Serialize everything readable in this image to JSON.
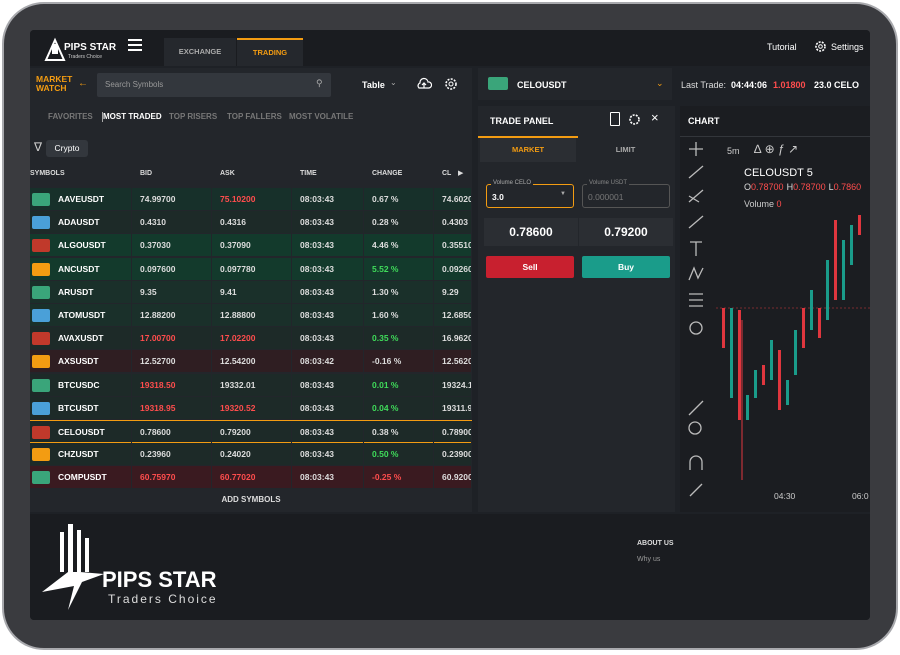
{
  "header": {
    "logo": "PIPS STAR",
    "logo_sub": "Traders Choice",
    "tabs": [
      "EXCHANGE",
      "TRADING"
    ],
    "tutorial": "Tutorial",
    "settings": "Settings"
  },
  "market_watch": {
    "title": "MARKET WATCH",
    "search_placeholder": "Search Symbols",
    "view": "Table",
    "filters": [
      "FAVORITES",
      "MOST TRADED",
      "TOP RISERS",
      "TOP FALLERS",
      "MOST VOLATILE"
    ],
    "category": "Crypto",
    "columns": [
      "SYMBOLS",
      "BID",
      "ASK",
      "TIME",
      "CHANGE",
      "CL"
    ],
    "rows": [
      {
        "cells": [
          "AAVEUSDT",
          "74.99700",
          "75.10200",
          "08:03:43",
          "0.67 %",
          "74.6020"
        ],
        "colors": [
          "#fff",
          "#ddd",
          "#ff4d4d",
          "#ddd",
          "#ddd",
          "#ddd"
        ],
        "bg": "#17302a"
      },
      {
        "cells": [
          "ADAUSDT",
          "0.4310",
          "0.4316",
          "08:03:43",
          "0.28 %",
          "0.4303"
        ],
        "colors": [
          "#fff",
          "#ddd",
          "#ddd",
          "#ddd",
          "#ddd",
          "#ddd"
        ],
        "bg": "#1d2a28"
      },
      {
        "cells": [
          "ALGOUSDT",
          "0.37030",
          "0.37090",
          "08:03:43",
          "4.46 %",
          "0.35510"
        ],
        "colors": [
          "#fff",
          "#ddd",
          "#ddd",
          "#ddd",
          "#ddd",
          "#ddd"
        ],
        "bg": "#133a2c"
      },
      {
        "cells": [
          "ANCUSDT",
          "0.097600",
          "0.097780",
          "08:03:43",
          "5.52 %",
          "0.09260"
        ],
        "colors": [
          "#fff",
          "#ddd",
          "#ddd",
          "#ddd",
          "#3fdc5a",
          "#ddd"
        ],
        "bg": "#133a2c"
      },
      {
        "cells": [
          "ARUSDT",
          "9.35",
          "9.41",
          "08:03:43",
          "1.30 %",
          "9.29"
        ],
        "colors": [
          "#fff",
          "#ddd",
          "#ddd",
          "#ddd",
          "#ddd",
          "#ddd"
        ],
        "bg": "#1a302a"
      },
      {
        "cells": [
          "ATOMUSDT",
          "12.88200",
          "12.88800",
          "08:03:43",
          "1.60 %",
          "12.6850"
        ],
        "colors": [
          "#fff",
          "#ddd",
          "#ddd",
          "#ddd",
          "#ddd",
          "#ddd"
        ],
        "bg": "#1a302a"
      },
      {
        "cells": [
          "AVAXUSDT",
          "17.00700",
          "17.02200",
          "08:03:43",
          "0.35 %",
          "16.9620"
        ],
        "colors": [
          "#fff",
          "#ff4d4d",
          "#ff4d4d",
          "#ddd",
          "#3fdc5a",
          "#ddd"
        ],
        "bg": "#1d2a28"
      },
      {
        "cells": [
          "AXSUSDT",
          "12.52700",
          "12.54200",
          "08:03:42",
          "-0.16 %",
          "12.5620"
        ],
        "colors": [
          "#fff",
          "#ddd",
          "#ddd",
          "#ddd",
          "#ddd",
          "#ddd"
        ],
        "bg": "#2f1e22"
      },
      {
        "cells": [
          "BTCUSDC",
          "19318.50",
          "19332.01",
          "08:03:43",
          "0.01 %",
          "19324.1"
        ],
        "colors": [
          "#fff",
          "#ff4d4d",
          "#ddd",
          "#ddd",
          "#3fdc5a",
          "#ddd"
        ],
        "bg": "#1d2a28"
      },
      {
        "cells": [
          "BTCUSDT",
          "19318.95",
          "19320.52",
          "08:03:43",
          "0.04 %",
          "19311.9"
        ],
        "colors": [
          "#fff",
          "#ff4d4d",
          "#ff4d4d",
          "#ddd",
          "#3fdc5a",
          "#ddd"
        ],
        "bg": "#1d2a28"
      },
      {
        "cells": [
          "CELOUSDT",
          "0.78600",
          "0.79200",
          "08:03:43",
          "0.38 %",
          "0.78900"
        ],
        "colors": [
          "#fff",
          "#ddd",
          "#ddd",
          "#ddd",
          "#ddd",
          "#ddd"
        ],
        "bg": "#1d2a28",
        "selected": true
      },
      {
        "cells": [
          "CHZUSDT",
          "0.23960",
          "0.24020",
          "08:03:43",
          "0.50 %",
          "0.23900"
        ],
        "colors": [
          "#fff",
          "#ddd",
          "#ddd",
          "#ddd",
          "#3fdc5a",
          "#ddd"
        ],
        "bg": "#1d2a28"
      },
      {
        "cells": [
          "COMPUSDT",
          "60.75970",
          "60.77020",
          "08:03:43",
          "-0.25 %",
          "60.9200"
        ],
        "colors": [
          "#fff",
          "#ff4d4d",
          "#ff4d4d",
          "#ddd",
          "#ff4d4d",
          "#ddd"
        ],
        "bg": "#3a1a20"
      }
    ],
    "add_symbols": "ADD SYMBOLS"
  },
  "symbol_bar": {
    "symbol": "CELOUSDT",
    "last_trade_label": "Last Trade:",
    "last_trade_time": "04:44:06",
    "last_trade_price": "1.01800",
    "last_trade_volume": "23.0 CELO"
  },
  "trade_panel": {
    "title": "TRADE PANEL",
    "tabs": [
      "MARKET",
      "LIMIT"
    ],
    "volume_celo_label": "Volume CELO",
    "volume_celo": "3.0",
    "volume_usdt_label": "Volume USDT",
    "volume_usdt": "0.000001",
    "sell_price": "0.78600",
    "buy_price": "0.79200",
    "sell": "Sell",
    "buy": "Buy"
  },
  "chart": {
    "title": "CHART",
    "interval": "5m",
    "symbol": "CELOUSDT",
    "period": "5",
    "ohlc": [
      {
        "label": "O",
        "value": "0.78700"
      },
      {
        "label": "H",
        "value": "0.78700"
      },
      {
        "label": "L",
        "value": "0.7860"
      }
    ],
    "volume_label": "Volume",
    "volume": "0",
    "times": [
      "04:30",
      "06:0"
    ]
  },
  "footer": {
    "logo": "PIPS STAR",
    "logo_sub": "Traders Choice",
    "about": "ABOUT US",
    "why": "Why us"
  }
}
